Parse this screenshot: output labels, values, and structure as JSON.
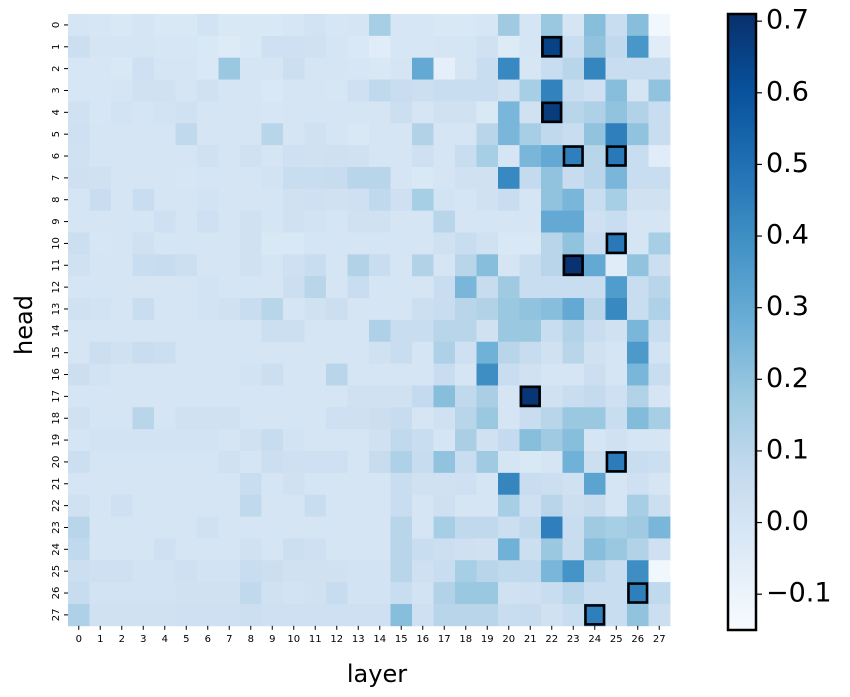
{
  "chart_data": {
    "type": "heatmap",
    "xlabel": "layer",
    "ylabel": "head",
    "x_categories": [
      "0",
      "1",
      "2",
      "3",
      "4",
      "5",
      "6",
      "7",
      "8",
      "9",
      "10",
      "11",
      "12",
      "13",
      "14",
      "15",
      "16",
      "17",
      "18",
      "19",
      "20",
      "21",
      "22",
      "23",
      "24",
      "25",
      "26",
      "27"
    ],
    "y_categories": [
      "0",
      "1",
      "2",
      "3",
      "4",
      "5",
      "6",
      "7",
      "8",
      "9",
      "10",
      "11",
      "12",
      "13",
      "14",
      "15",
      "16",
      "17",
      "18",
      "19",
      "20",
      "21",
      "22",
      "23",
      "24",
      "25",
      "26",
      "27"
    ],
    "colormap": "Blues",
    "vmin": -0.15,
    "vmax": 0.71,
    "colorbar_ticks": [
      {
        "value": 0.7,
        "label": "0.7"
      },
      {
        "value": 0.6,
        "label": "0.6"
      },
      {
        "value": 0.5,
        "label": "0.5"
      },
      {
        "value": 0.4,
        "label": "0.4"
      },
      {
        "value": 0.3,
        "label": "0.3"
      },
      {
        "value": 0.2,
        "label": "0.2"
      },
      {
        "value": 0.1,
        "label": "0.1"
      },
      {
        "value": 0.0,
        "label": "0.0"
      },
      {
        "value": -0.1,
        "label": "−0.1"
      }
    ],
    "values": [
      [
        0.0,
        -0.01,
        -0.02,
        0.0,
        -0.02,
        -0.02,
        0.01,
        -0.02,
        -0.02,
        -0.02,
        -0.01,
        0.01,
        -0.01,
        0.0,
        0.15,
        -0.01,
        -0.01,
        -0.02,
        -0.02,
        -0.01,
        0.17,
        0.0,
        0.18,
        0.0,
        0.22,
        0.05,
        0.22,
        -0.12
      ],
      [
        0.04,
        0.0,
        0.0,
        0.0,
        -0.01,
        -0.01,
        -0.02,
        -0.04,
        -0.02,
        0.03,
        0.03,
        0.02,
        0.0,
        -0.02,
        -0.05,
        -0.01,
        -0.01,
        0.0,
        0.0,
        0.02,
        -0.04,
        0.0,
        0.65,
        0.05,
        0.2,
        0.08,
        0.37,
        -0.05
      ],
      [
        -0.01,
        -0.01,
        -0.02,
        0.03,
        0.0,
        0.0,
        -0.02,
        0.18,
        0.0,
        0.0,
        0.04,
        0.0,
        0.0,
        -0.01,
        -0.02,
        0.0,
        0.3,
        -0.07,
        0.0,
        0.05,
        0.42,
        -0.01,
        0.05,
        0.1,
        0.43,
        0.05,
        0.05,
        0.05
      ],
      [
        -0.01,
        -0.01,
        0.0,
        0.02,
        0.02,
        0.0,
        0.02,
        0.0,
        0.0,
        -0.02,
        0.0,
        0.0,
        -0.01,
        0.03,
        0.08,
        0.05,
        0.04,
        0.05,
        0.05,
        0.05,
        0.02,
        0.15,
        0.44,
        0.05,
        0.03,
        0.22,
        0.0,
        0.2
      ],
      [
        0.02,
        -0.01,
        0.01,
        0.0,
        0.01,
        0.02,
        0.0,
        0.0,
        0.0,
        -0.01,
        0.0,
        0.0,
        0.0,
        0.0,
        0.0,
        0.04,
        0.0,
        0.02,
        0.02,
        -0.02,
        0.25,
        0.02,
        0.67,
        0.1,
        0.13,
        0.2,
        0.12,
        0.05
      ],
      [
        0.03,
        0.0,
        0.0,
        0.0,
        0.0,
        0.08,
        0.0,
        0.0,
        0.0,
        0.1,
        0.0,
        0.02,
        0.0,
        -0.02,
        0.0,
        0.0,
        0.12,
        0.0,
        0.0,
        0.1,
        0.25,
        0.15,
        0.08,
        0.05,
        0.2,
        0.45,
        0.2,
        0.05
      ],
      [
        0.02,
        0.0,
        0.0,
        0.0,
        0.0,
        0.0,
        0.02,
        0.0,
        0.02,
        0.0,
        0.03,
        0.02,
        0.03,
        0.02,
        0.0,
        0.0,
        0.03,
        0.0,
        0.05,
        0.15,
        0.0,
        0.25,
        0.3,
        0.45,
        0.1,
        0.47,
        0.05,
        -0.05
      ],
      [
        0.03,
        0.02,
        0.0,
        0.0,
        0.0,
        -0.01,
        0.0,
        0.0,
        0.0,
        0.01,
        0.05,
        0.05,
        0.06,
        0.1,
        0.1,
        0.0,
        -0.02,
        0.0,
        0.02,
        0.02,
        0.42,
        0.07,
        0.2,
        0.06,
        0.1,
        0.25,
        0.05,
        0.05
      ],
      [
        0.0,
        0.05,
        0.0,
        0.05,
        0.0,
        0.0,
        0.01,
        0.0,
        0.0,
        0.0,
        0.02,
        0.03,
        0.02,
        0.03,
        0.08,
        0.03,
        0.15,
        0.01,
        0.0,
        0.02,
        0.05,
        0.0,
        0.2,
        0.25,
        0.05,
        0.15,
        0.02,
        0.02
      ],
      [
        0.0,
        0.0,
        0.0,
        0.0,
        0.03,
        0.0,
        0.03,
        0.0,
        0.02,
        0.0,
        0.02,
        0.01,
        0.0,
        0.02,
        0.02,
        0.0,
        0.0,
        0.1,
        0.0,
        0.0,
        0.0,
        0.0,
        0.3,
        0.3,
        0.03,
        0.05,
        0.0,
        0.0
      ],
      [
        0.04,
        -0.01,
        0.0,
        0.02,
        0.0,
        0.0,
        0.0,
        0.0,
        0.02,
        -0.02,
        -0.02,
        0.0,
        0.0,
        0.0,
        0.0,
        0.0,
        0.0,
        0.02,
        0.05,
        0.02,
        -0.02,
        -0.02,
        0.1,
        0.2,
        0.05,
        0.47,
        0.0,
        0.15
      ],
      [
        0.02,
        0.0,
        0.0,
        0.05,
        0.06,
        0.04,
        0.0,
        0.0,
        0.02,
        0.0,
        0.03,
        0.05,
        0.0,
        0.12,
        0.05,
        0.0,
        0.12,
        0.0,
        0.1,
        0.22,
        0.0,
        0.05,
        0.1,
        0.7,
        0.3,
        -0.05,
        0.2,
        0.04
      ],
      [
        0.0,
        0.0,
        0.0,
        0.0,
        0.0,
        0.0,
        0.01,
        0.0,
        0.0,
        0.0,
        0.04,
        0.1,
        0.0,
        0.05,
        0.0,
        0.0,
        0.0,
        0.05,
        0.25,
        0.06,
        0.17,
        0.05,
        0.05,
        0.05,
        0.05,
        0.35,
        0.05,
        0.1
      ],
      [
        0.02,
        0.01,
        0.0,
        0.05,
        0.0,
        0.0,
        0.01,
        0.02,
        0.05,
        0.1,
        0.0,
        0.02,
        0.04,
        0.0,
        0.0,
        0.0,
        0.04,
        0.05,
        0.1,
        0.12,
        0.18,
        0.2,
        0.22,
        0.3,
        0.1,
        0.42,
        0.05,
        0.13
      ],
      [
        0.0,
        0.0,
        0.0,
        0.0,
        0.0,
        0.0,
        0.0,
        0.0,
        0.0,
        0.04,
        0.04,
        0.0,
        0.0,
        0.0,
        0.13,
        0.05,
        0.05,
        0.1,
        0.1,
        0.02,
        0.18,
        0.18,
        0.05,
        0.12,
        0.05,
        0.02,
        0.25,
        0.05
      ],
      [
        0.0,
        0.04,
        0.02,
        0.05,
        0.04,
        0.0,
        0.0,
        0.0,
        0.0,
        0.0,
        0.0,
        0.0,
        0.0,
        0.0,
        0.02,
        0.05,
        0.0,
        0.13,
        0.03,
        0.27,
        0.1,
        0.06,
        0.02,
        0.1,
        0.02,
        0.0,
        0.36,
        0.01
      ],
      [
        0.04,
        0.01,
        0.0,
        0.0,
        0.0,
        0.0,
        0.0,
        0.0,
        0.01,
        0.04,
        0.0,
        0.0,
        0.1,
        0.0,
        0.0,
        0.0,
        0.0,
        0.05,
        0.0,
        0.4,
        0.05,
        0.02,
        0.0,
        0.0,
        0.04,
        0.0,
        0.25,
        0.05
      ],
      [
        0.0,
        0.0,
        0.0,
        0.0,
        0.0,
        0.0,
        0.0,
        0.0,
        0.0,
        0.0,
        0.0,
        0.0,
        0.0,
        0.02,
        0.02,
        0.02,
        0.07,
        0.22,
        0.08,
        0.14,
        0.0,
        0.69,
        0.02,
        0.05,
        0.07,
        0.03,
        0.12,
        0.0
      ],
      [
        0.02,
        0.0,
        0.0,
        0.1,
        0.0,
        0.02,
        0.02,
        0.02,
        0.0,
        0.0,
        0.0,
        0.0,
        0.03,
        0.03,
        0.04,
        0.06,
        0.0,
        0.02,
        0.1,
        0.18,
        0.0,
        0.05,
        0.1,
        0.18,
        0.18,
        0.05,
        0.23,
        0.15
      ],
      [
        0.0,
        0.01,
        0.01,
        0.01,
        0.01,
        0.01,
        0.01,
        0.0,
        0.02,
        0.06,
        0.01,
        0.0,
        0.0,
        0.0,
        0.02,
        0.08,
        0.05,
        0.0,
        0.14,
        0.02,
        0.07,
        0.22,
        0.17,
        0.22,
        0.0,
        0.02,
        0.0,
        0.0
      ],
      [
        0.04,
        0.0,
        0.0,
        0.0,
        0.0,
        0.0,
        0.0,
        0.02,
        0.0,
        0.04,
        0.03,
        0.03,
        0.03,
        0.0,
        0.06,
        0.13,
        0.06,
        0.2,
        0.05,
        0.17,
        0.0,
        -0.02,
        0.0,
        0.27,
        0.04,
        0.46,
        0.05,
        0.04
      ],
      [
        0.0,
        0.0,
        0.0,
        0.0,
        0.0,
        0.0,
        0.0,
        0.0,
        0.05,
        0.0,
        0.02,
        0.0,
        0.0,
        0.0,
        0.0,
        0.05,
        0.02,
        0.02,
        0.03,
        0.0,
        0.43,
        0.05,
        0.04,
        0.02,
        0.32,
        0.0,
        0.03,
        0.0
      ],
      [
        0.02,
        0.0,
        0.03,
        0.0,
        0.0,
        0.0,
        0.0,
        0.0,
        0.08,
        0.0,
        0.0,
        0.05,
        0.0,
        0.0,
        0.0,
        0.05,
        0.0,
        0.03,
        0.0,
        0.0,
        0.15,
        0.03,
        0.1,
        0.04,
        0.06,
        0.0,
        0.15,
        0.04
      ],
      [
        0.1,
        0.0,
        0.0,
        0.0,
        0.0,
        0.0,
        0.02,
        0.0,
        0.0,
        0.0,
        0.0,
        0.0,
        0.0,
        0.0,
        0.0,
        0.1,
        0.0,
        0.15,
        0.08,
        0.08,
        0.04,
        0.08,
        0.45,
        0.05,
        0.17,
        0.15,
        0.17,
        0.25
      ],
      [
        0.08,
        0.0,
        0.0,
        0.0,
        0.03,
        0.0,
        0.0,
        0.0,
        0.02,
        0.0,
        0.04,
        0.03,
        0.0,
        0.0,
        0.0,
        0.1,
        0.05,
        0.04,
        0.03,
        0.02,
        0.27,
        0.04,
        0.18,
        0.06,
        0.22,
        0.18,
        0.12,
        0.03
      ],
      [
        0.04,
        0.03,
        0.03,
        0.01,
        0.01,
        0.03,
        0.01,
        0.01,
        0.05,
        0.04,
        0.02,
        0.02,
        0.02,
        0.01,
        0.01,
        0.1,
        0.03,
        0.05,
        0.15,
        0.1,
        0.08,
        0.08,
        0.25,
        0.38,
        0.1,
        0.05,
        0.4,
        -0.12
      ],
      [
        0.06,
        0.01,
        0.01,
        0.01,
        0.01,
        0.02,
        0.02,
        0.02,
        0.08,
        0.02,
        0.01,
        0.02,
        0.06,
        0.01,
        0.01,
        0.05,
        0.01,
        0.12,
        0.18,
        0.18,
        0.02,
        0.03,
        0.05,
        0.1,
        0.05,
        0.05,
        0.45,
        0.08
      ],
      [
        0.13,
        0.02,
        0.02,
        0.02,
        0.02,
        0.03,
        0.03,
        0.03,
        0.04,
        0.03,
        0.03,
        0.03,
        0.03,
        0.03,
        0.03,
        0.22,
        0.03,
        0.1,
        0.1,
        0.1,
        0.05,
        0.06,
        0.02,
        0.05,
        0.45,
        0.05,
        0.2,
        0.04
      ]
    ],
    "highlighted_cells": [
      {
        "layer": 22,
        "head": 1
      },
      {
        "layer": 22,
        "head": 4
      },
      {
        "layer": 23,
        "head": 6
      },
      {
        "layer": 25,
        "head": 6
      },
      {
        "layer": 25,
        "head": 10
      },
      {
        "layer": 23,
        "head": 11
      },
      {
        "layer": 21,
        "head": 17
      },
      {
        "layer": 25,
        "head": 20
      },
      {
        "layer": 26,
        "head": 26
      },
      {
        "layer": 24,
        "head": 27
      }
    ]
  }
}
